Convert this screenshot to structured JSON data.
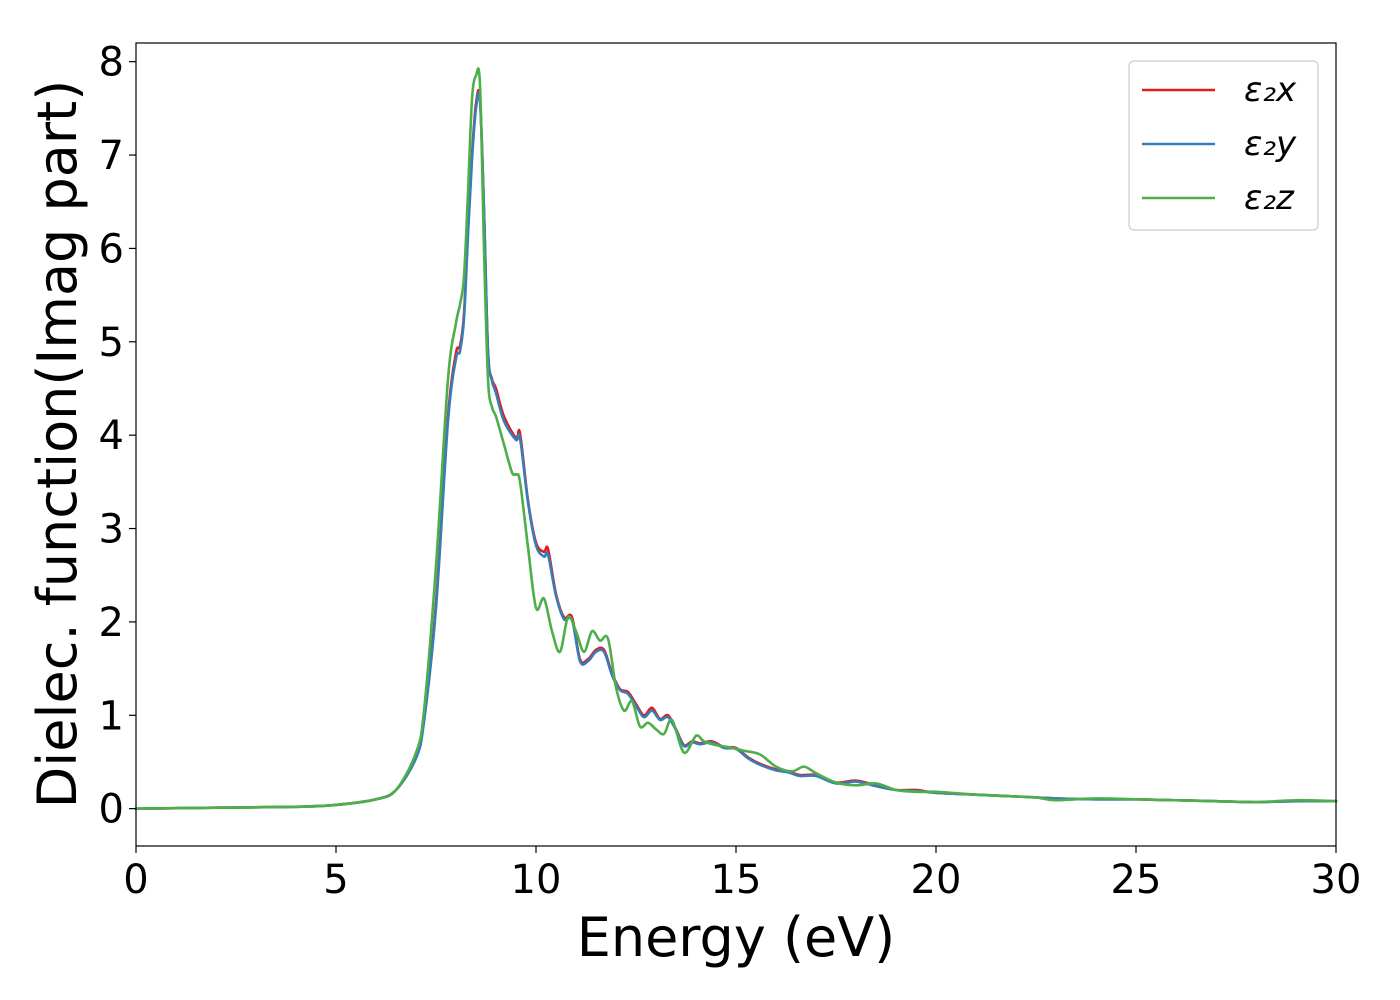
{
  "chart_data": {
    "type": "line",
    "title": "",
    "xlabel": "Energy (eV)",
    "ylabel": "Dielec. function(Imag part)",
    "xlim": [
      0,
      30
    ],
    "ylim": [
      -0.4,
      8.2
    ],
    "xticks": [
      "0",
      "5",
      "10",
      "15",
      "20",
      "25",
      "30"
    ],
    "yticks": [
      "0",
      "1",
      "2",
      "3",
      "4",
      "5",
      "6",
      "7",
      "8"
    ],
    "grid": false,
    "legend_position": "top-right",
    "series": [
      {
        "name": "ε₂x",
        "color": "#e41a1c",
        "x": [
          0,
          2,
          4,
          5,
          6,
          6.5,
          7,
          7.2,
          7.5,
          7.8,
          8.0,
          8.1,
          8.2,
          8.3,
          8.4,
          8.5,
          8.6,
          8.7,
          8.8,
          8.9,
          9.0,
          9.2,
          9.5,
          9.6,
          9.8,
          10.0,
          10.2,
          10.3,
          10.5,
          10.7,
          10.9,
          11.1,
          11.3,
          11.5,
          11.7,
          11.9,
          12.1,
          12.3,
          12.5,
          12.7,
          12.9,
          13.1,
          13.3,
          13.5,
          13.7,
          13.9,
          14.1,
          14.4,
          14.7,
          15.0,
          15.3,
          15.6,
          16.0,
          16.3,
          16.6,
          17.0,
          17.5,
          18.0,
          18.5,
          19.0,
          19.5,
          20.0,
          21.0,
          22.0,
          23.0,
          24.0,
          25.0,
          26.0,
          27.0,
          28.0,
          29.0,
          30.0
        ],
        "values": [
          0.0,
          0.01,
          0.02,
          0.04,
          0.1,
          0.2,
          0.55,
          0.95,
          2.2,
          4.2,
          4.88,
          4.95,
          5.3,
          6.2,
          7.0,
          7.55,
          7.6,
          6.4,
          4.9,
          4.6,
          4.5,
          4.2,
          3.97,
          4.02,
          3.3,
          2.85,
          2.75,
          2.78,
          2.3,
          2.05,
          2.05,
          1.6,
          1.6,
          1.7,
          1.7,
          1.45,
          1.28,
          1.25,
          1.12,
          1.0,
          1.08,
          0.96,
          1.0,
          0.85,
          0.68,
          0.72,
          0.7,
          0.72,
          0.66,
          0.65,
          0.55,
          0.48,
          0.42,
          0.4,
          0.36,
          0.36,
          0.28,
          0.3,
          0.25,
          0.2,
          0.2,
          0.17,
          0.15,
          0.13,
          0.11,
          0.1,
          0.1,
          0.09,
          0.08,
          0.07,
          0.08,
          0.08
        ]
      },
      {
        "name": "ε₂y",
        "color": "#377eb8",
        "x": [
          0,
          2,
          4,
          5,
          6,
          6.5,
          7,
          7.2,
          7.5,
          7.8,
          8.0,
          8.1,
          8.2,
          8.3,
          8.4,
          8.5,
          8.6,
          8.7,
          8.8,
          8.9,
          9.0,
          9.2,
          9.5,
          9.6,
          9.8,
          10.0,
          10.2,
          10.3,
          10.5,
          10.7,
          10.9,
          11.1,
          11.3,
          11.5,
          11.7,
          11.9,
          12.1,
          12.3,
          12.5,
          12.7,
          12.9,
          13.1,
          13.3,
          13.5,
          13.7,
          13.9,
          14.1,
          14.4,
          14.7,
          15.0,
          15.3,
          15.6,
          16.0,
          16.3,
          16.6,
          17.0,
          17.5,
          18.0,
          18.5,
          19.0,
          19.5,
          20.0,
          21.0,
          22.0,
          23.0,
          24.0,
          25.0,
          26.0,
          27.0,
          28.0,
          29.0,
          30.0
        ],
        "values": [
          0.0,
          0.01,
          0.02,
          0.04,
          0.1,
          0.2,
          0.54,
          0.93,
          2.15,
          4.15,
          4.82,
          4.9,
          5.25,
          6.15,
          6.95,
          7.5,
          7.58,
          6.4,
          4.9,
          4.58,
          4.45,
          4.15,
          3.95,
          3.97,
          3.28,
          2.82,
          2.7,
          2.72,
          2.28,
          2.03,
          2.02,
          1.58,
          1.58,
          1.68,
          1.68,
          1.43,
          1.27,
          1.23,
          1.1,
          0.98,
          1.05,
          0.95,
          0.98,
          0.84,
          0.67,
          0.71,
          0.69,
          0.71,
          0.65,
          0.64,
          0.54,
          0.47,
          0.41,
          0.39,
          0.35,
          0.35,
          0.27,
          0.29,
          0.24,
          0.2,
          0.19,
          0.17,
          0.15,
          0.13,
          0.11,
          0.1,
          0.1,
          0.09,
          0.08,
          0.07,
          0.08,
          0.08
        ]
      },
      {
        "name": "ε₂z",
        "color": "#4daf4a",
        "x": [
          0,
          2,
          4,
          5,
          6,
          6.5,
          7,
          7.2,
          7.5,
          7.8,
          8.0,
          8.1,
          8.2,
          8.3,
          8.4,
          8.5,
          8.6,
          8.7,
          8.8,
          8.9,
          9.0,
          9.2,
          9.4,
          9.5,
          9.6,
          9.8,
          10.0,
          10.2,
          10.4,
          10.6,
          10.8,
          11.0,
          11.2,
          11.4,
          11.6,
          11.8,
          12.0,
          12.2,
          12.4,
          12.6,
          12.8,
          13.0,
          13.2,
          13.4,
          13.7,
          14.0,
          14.2,
          14.5,
          14.8,
          15.2,
          15.6,
          16.0,
          16.4,
          16.7,
          17.0,
          17.5,
          18.0,
          18.5,
          19.0,
          19.5,
          20.0,
          21.0,
          22.0,
          22.5,
          23.0,
          24.0,
          25.0,
          26.0,
          27.0,
          28.0,
          29.0,
          30.0
        ],
        "values": [
          0.0,
          0.01,
          0.02,
          0.04,
          0.1,
          0.2,
          0.6,
          1.05,
          2.6,
          4.6,
          5.2,
          5.4,
          5.7,
          6.6,
          7.6,
          7.85,
          7.75,
          6.0,
          4.6,
          4.3,
          4.2,
          3.9,
          3.6,
          3.58,
          3.5,
          2.8,
          2.15,
          2.25,
          1.9,
          1.68,
          2.05,
          1.9,
          1.68,
          1.9,
          1.8,
          1.82,
          1.3,
          1.05,
          1.15,
          0.88,
          0.92,
          0.85,
          0.8,
          0.95,
          0.6,
          0.78,
          0.72,
          0.68,
          0.66,
          0.62,
          0.58,
          0.45,
          0.4,
          0.45,
          0.38,
          0.28,
          0.25,
          0.27,
          0.2,
          0.18,
          0.18,
          0.15,
          0.13,
          0.12,
          0.09,
          0.11,
          0.1,
          0.09,
          0.08,
          0.07,
          0.09,
          0.08
        ]
      }
    ]
  }
}
